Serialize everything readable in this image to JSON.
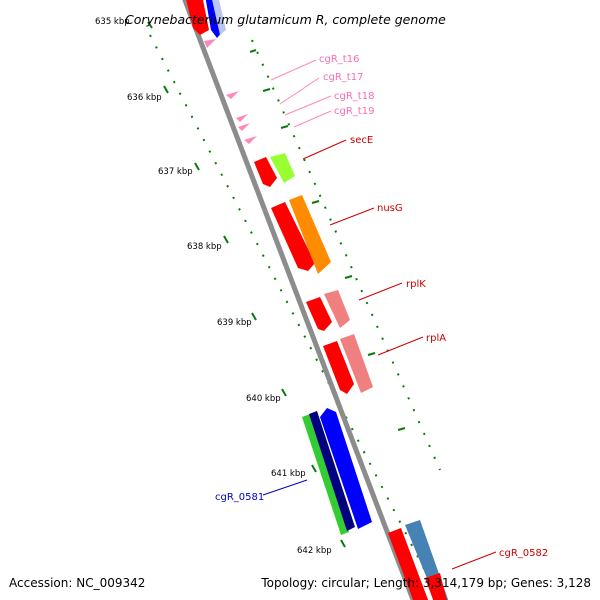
{
  "title": "Corynebacterium glutamicum R, complete genome",
  "footer": {
    "accession": "Accession: NC_009342",
    "topology": "Topology: circular; Length: 3,314,179 bp; Genes: 3,128"
  },
  "ticks": [
    "635 kbp",
    "636 kbp",
    "637 kbp",
    "638 kbp",
    "639 kbp",
    "640 kbp",
    "641 kbp",
    "642 kbp"
  ],
  "gene_labels": {
    "t16": "cgR_t16",
    "t17": "cgR_t17",
    "t18": "cgR_t18",
    "t19": "cgR_t19",
    "secE": "secE",
    "nusG": "nusG",
    "rplK": "rplK",
    "rplA": "rplA",
    "c0581": "cgR_0581",
    "c0582": "cgR_0582"
  },
  "colors": {
    "backbone": "#8c8c8c",
    "tick_mark": "#0b7a0b",
    "red": "#ff0000",
    "trna": "#ff88bb",
    "lime": "#99ff33",
    "orange": "#ff8c00",
    "salmon": "#f08080",
    "green": "#33cc33",
    "navy": "#000080",
    "blue": "#0000ff",
    "steel": "#4682b4",
    "label_pink": "#ff69b4",
    "label_red": "#cc0000",
    "label_blue": "#0000cc"
  }
}
